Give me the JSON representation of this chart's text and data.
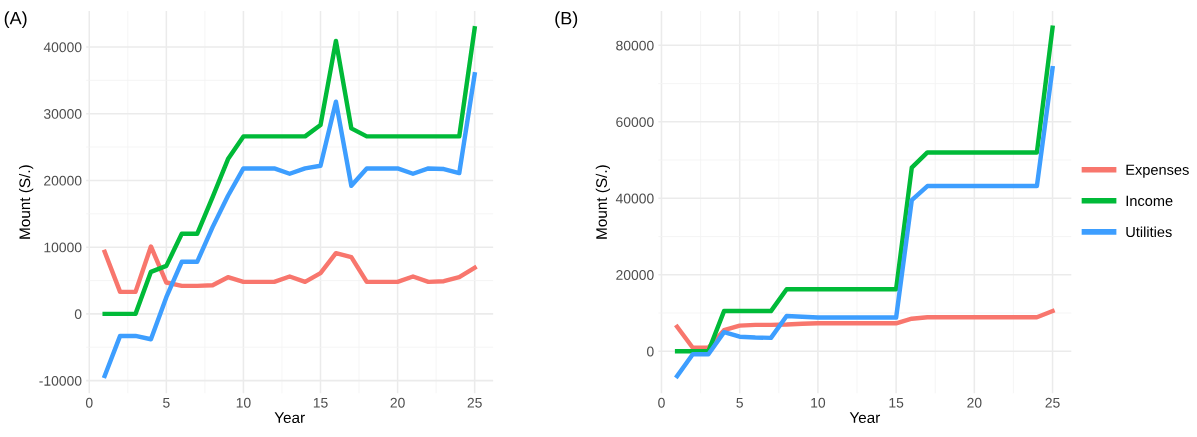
{
  "chart_data": [
    {
      "type": "line",
      "title": "(A)",
      "xlabel": "Year",
      "ylabel": "Mount (S/.)",
      "x": [
        1,
        2,
        3,
        4,
        5,
        6,
        7,
        8,
        9,
        10,
        11,
        12,
        13,
        14,
        15,
        16,
        17,
        18,
        19,
        20,
        21,
        22,
        23,
        24,
        25
      ],
      "series": [
        {
          "color": "#f8766d",
          "values": [
            9300,
            3300,
            3300,
            10100,
            4700,
            4200,
            4200,
            4300,
            5500,
            4800,
            4800,
            4800,
            5600,
            4800,
            6100,
            9100,
            8500,
            4800,
            4800,
            4800,
            5600,
            4800,
            4900,
            5500,
            6900
          ]
        },
        {
          "color": "#00ba38",
          "values": [
            0,
            0,
            0,
            6300,
            7200,
            12000,
            12000,
            17500,
            23200,
            26600,
            26600,
            26600,
            26600,
            26600,
            28300,
            40900,
            27800,
            26600,
            26600,
            26600,
            26600,
            26600,
            26600,
            26600,
            42800
          ]
        },
        {
          "color": "#3d9eff",
          "values": [
            -9300,
            -3300,
            -3300,
            -3800,
            2500,
            7800,
            7800,
            13000,
            17700,
            21800,
            21800,
            21800,
            21000,
            21800,
            22200,
            31800,
            19200,
            21800,
            21800,
            21800,
            21000,
            21800,
            21700,
            21100,
            35900
          ]
        }
      ],
      "xlim": [
        -0.2,
        26.2
      ],
      "ylim": [
        -11900,
        45400
      ],
      "xticks": [
        0,
        5,
        10,
        15,
        20,
        25
      ],
      "yticks": [
        -10000,
        0,
        10000,
        20000,
        30000,
        40000
      ],
      "grid": true,
      "marker": "none",
      "line_style": "solid"
    },
    {
      "type": "line",
      "title": "(B)",
      "xlabel": "Year",
      "ylabel": "Mount (S/.)",
      "x": [
        1,
        2,
        3,
        4,
        5,
        6,
        7,
        8,
        9,
        10,
        11,
        12,
        13,
        14,
        15,
        16,
        17,
        18,
        19,
        20,
        21,
        22,
        23,
        24,
        25
      ],
      "series": [
        {
          "name": "Expenses",
          "color": "#f8766d",
          "values": [
            6400,
            900,
            900,
            5500,
            6700,
            6900,
            6900,
            7000,
            7200,
            7300,
            7300,
            7300,
            7300,
            7300,
            7300,
            8500,
            8900,
            8900,
            8900,
            8900,
            8900,
            8900,
            8900,
            8900,
            10500
          ]
        },
        {
          "name": "Income",
          "color": "#00ba38",
          "values": [
            0,
            0,
            0,
            10500,
            10500,
            10500,
            10500,
            16200,
            16200,
            16200,
            16200,
            16200,
            16200,
            16200,
            16200,
            48000,
            52000,
            52000,
            52000,
            52000,
            52000,
            52000,
            52000,
            52000,
            84600
          ]
        },
        {
          "name": "Utilities",
          "color": "#3d9eff",
          "values": [
            -6500,
            -800,
            -800,
            5000,
            3800,
            3600,
            3500,
            9200,
            9000,
            8800,
            8800,
            8800,
            8800,
            8800,
            8800,
            39500,
            43200,
            43200,
            43200,
            43200,
            43200,
            43200,
            43200,
            43200,
            74000
          ]
        }
      ],
      "xlim": [
        -0.2,
        26.2
      ],
      "ylim": [
        -11000,
        89000
      ],
      "xticks": [
        0,
        5,
        10,
        15,
        20,
        25
      ],
      "yticks": [
        0,
        20000,
        40000,
        60000,
        80000
      ],
      "grid": true,
      "legend": "right",
      "marker": "none",
      "line_style": "solid"
    }
  ]
}
